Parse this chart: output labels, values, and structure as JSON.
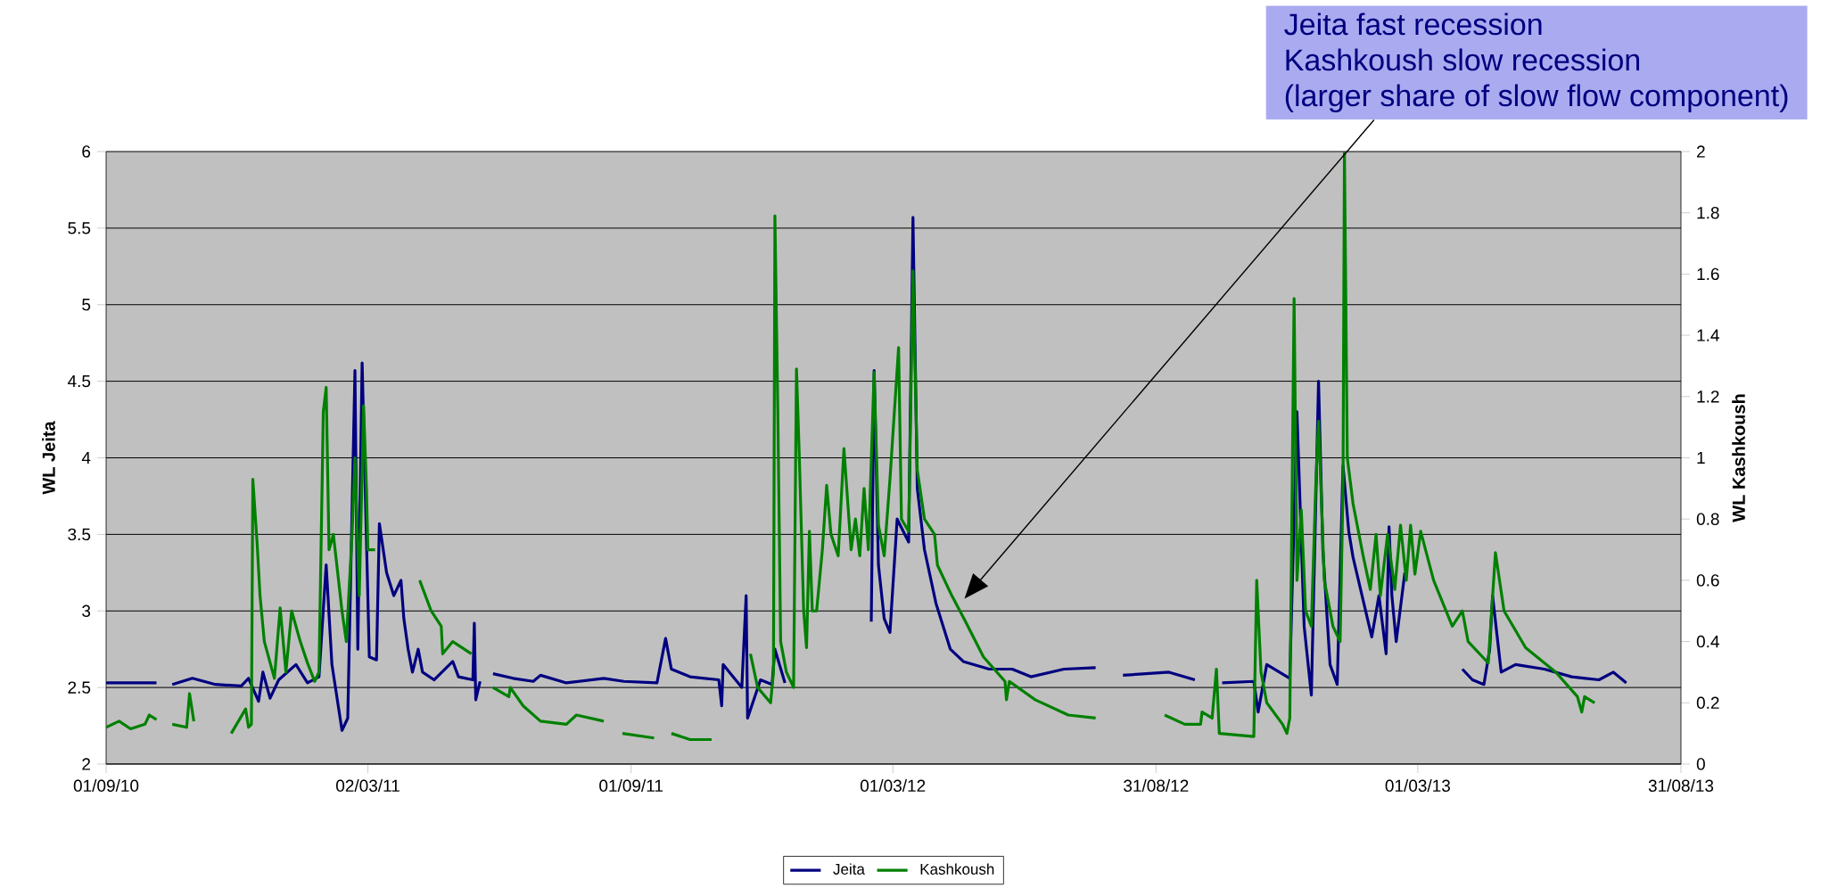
{
  "chart_data": {
    "type": "line",
    "ylabel": "WL Jeita",
    "y2label": "WL Kashkoush",
    "xlim": [
      "2010-09-01",
      "2013-08-31"
    ],
    "xticks": [
      {
        "value": "2010-09-01",
        "label": "01/09/10"
      },
      {
        "value": "2011-03-02",
        "label": "02/03/11"
      },
      {
        "value": "2011-09-01",
        "label": "01/09/11"
      },
      {
        "value": "2012-03-01",
        "label": "01/03/12"
      },
      {
        "value": "2012-08-31",
        "label": "31/08/12"
      },
      {
        "value": "2013-03-01",
        "label": "01/03/13"
      },
      {
        "value": "2013-08-31",
        "label": "31/08/13"
      }
    ],
    "ylim": [
      2,
      6
    ],
    "yticks": [
      2,
      2.5,
      3,
      3.5,
      4,
      4.5,
      5,
      5.5,
      6
    ],
    "y2lim": [
      0,
      2
    ],
    "y2ticks": [
      0,
      0.2,
      0.4,
      0.6,
      0.8,
      1,
      1.2,
      1.4,
      1.6,
      1.8,
      2
    ],
    "grid": "y",
    "legend": "bottom",
    "annotations": [
      "Jeita fast recession",
      "Kashkoush slow recession",
      "(larger share of slow flow component)"
    ],
    "series": [
      {
        "name": "Jeita",
        "color": "#000080",
        "axis": "y",
        "x": [
          "2010-09-01",
          "2010-10-06",
          "2010-10-10",
          "2010-10-17",
          "2010-10-31",
          "2010-11-16",
          "2010-12-04",
          "2010-12-09",
          "2010-12-16",
          "2010-12-19",
          "2010-12-24",
          "2010-12-30",
          "2011-01-11",
          "2011-01-19",
          "2011-01-27",
          "2011-02-01",
          "2011-02-05",
          "2011-02-12",
          "2011-02-16",
          "2011-02-21",
          "2011-02-23",
          "2011-02-26",
          "2011-03-03",
          "2011-03-08",
          "2011-03-10",
          "2011-03-15",
          "2011-03-20",
          "2011-03-25",
          "2011-03-27",
          "2011-03-30",
          "2011-04-02",
          "2011-04-06",
          "2011-04-09",
          "2011-04-17",
          "2011-04-30",
          "2011-05-04",
          "2011-05-14",
          "2011-05-15",
          "2011-05-16",
          "2011-05-19",
          "2011-05-23",
          "2011-05-28",
          "2011-06-11",
          "2011-06-25",
          "2011-06-30",
          "2011-07-18",
          "2011-08-13",
          "2011-08-27",
          "2011-09-19",
          "2011-09-25",
          "2011-09-29",
          "2011-10-12",
          "2011-11-01",
          "2011-11-03",
          "2011-11-04",
          "2011-11-17",
          "2011-11-20",
          "2011-11-21",
          "2011-11-30",
          "2011-12-08",
          "2011-12-10",
          "2011-12-17",
          "2012-01-01",
          "2012-02-15",
          "2012-02-17",
          "2012-02-20",
          "2012-02-24",
          "2012-02-28",
          "2012-03-04",
          "2012-03-12",
          "2012-03-15",
          "2012-03-18",
          "2012-03-23",
          "2012-03-31",
          "2012-04-10",
          "2012-04-19",
          "2012-05-07",
          "2012-05-23",
          "2012-06-05",
          "2012-06-28",
          "2012-07-20",
          "2012-07-30",
          "2012-08-08",
          "2012-09-09",
          "2012-09-27",
          "2012-10-05",
          "2012-10-16",
          "2012-11-07",
          "2012-11-10",
          "2012-11-16",
          "2012-12-02",
          "2012-12-07",
          "2012-12-12",
          "2012-12-17",
          "2012-12-22",
          "2012-12-25",
          "2012-12-30",
          "2013-01-04",
          "2013-01-08",
          "2013-01-12",
          "2013-01-15",
          "2013-01-28",
          "2013-02-02",
          "2013-02-07",
          "2013-02-09",
          "2013-02-11",
          "2013-02-14",
          "2013-02-20",
          "2013-02-25",
          "2013-04-01",
          "2013-04-08",
          "2013-04-16",
          "2013-04-20",
          "2013-04-22",
          "2013-04-25",
          "2013-04-28",
          "2013-05-08",
          "2013-05-28",
          "2013-06-16",
          "2013-07-05",
          "2013-07-15",
          "2013-07-24"
        ],
        "values": [
          2.53,
          2.53,
          null,
          2.52,
          2.56,
          2.52,
          2.51,
          2.56,
          2.41,
          2.6,
          2.43,
          2.55,
          2.65,
          2.53,
          2.57,
          3.3,
          2.65,
          2.22,
          2.3,
          4.57,
          2.75,
          4.62,
          2.7,
          2.68,
          3.57,
          3.25,
          3.1,
          3.2,
          2.95,
          2.75,
          2.6,
          2.75,
          2.6,
          2.55,
          2.67,
          2.57,
          2.55,
          2.92,
          2.42,
          2.54,
          null,
          2.59,
          2.56,
          2.54,
          2.58,
          2.53,
          2.56,
          2.54,
          2.53,
          2.82,
          2.62,
          2.57,
          2.55,
          2.38,
          2.65,
          2.5,
          3.1,
          2.3,
          2.55,
          2.52,
          2.75,
          2.53,
          null,
          2.93,
          4.57,
          3.3,
          2.95,
          2.86,
          3.6,
          3.45,
          5.57,
          3.8,
          3.4,
          3.05,
          2.75,
          2.67,
          2.62,
          2.62,
          2.57,
          2.62,
          2.63,
          null,
          2.58,
          2.6,
          2.55,
          null,
          2.53,
          2.54,
          2.34,
          2.65,
          2.56,
          4.3,
          2.9,
          2.45,
          4.5,
          3.4,
          2.65,
          2.52,
          3.95,
          3.52,
          3.35,
          2.83,
          3.1,
          2.72,
          3.55,
          3.1,
          2.8,
          3.25,
          null,
          2.62,
          2.55,
          2.52,
          2.75,
          3.1,
          2.85,
          2.6,
          2.65,
          2.62,
          2.57,
          2.55,
          2.6,
          2.53
        ]
      },
      {
        "name": "Kashkoush",
        "color": "#008000",
        "axis": "y2",
        "x": [
          "2010-09-01",
          "2010-09-10",
          "2010-09-18",
          "2010-09-28",
          "2010-10-01",
          "2010-10-06",
          "2010-10-10",
          "2010-10-17",
          "2010-10-27",
          "2010-10-29",
          "2010-11-01",
          "2010-11-10",
          "2010-11-27",
          "2010-12-07",
          "2010-12-09",
          "2010-12-11",
          "2010-12-12",
          "2010-12-15",
          "2010-12-17",
          "2010-12-20",
          "2010-12-27",
          "2010-12-31",
          "2011-01-04",
          "2011-01-08",
          "2011-01-14",
          "2011-01-19",
          "2011-01-24",
          "2011-01-27",
          "2011-01-30",
          "2011-02-01",
          "2011-02-03",
          "2011-02-06",
          "2011-02-12",
          "2011-02-15",
          "2011-02-19",
          "2011-02-21",
          "2011-02-24",
          "2011-02-27",
          "2011-03-01",
          "2011-03-02",
          "2011-03-07",
          "2011-03-20",
          "2011-04-07",
          "2011-04-15",
          "2011-04-22",
          "2011-04-23",
          "2011-04-30",
          "2011-05-13",
          "2011-05-20",
          "2011-05-28",
          "2011-06-08",
          "2011-06-09",
          "2011-06-18",
          "2011-06-30",
          "2011-07-18",
          "2011-07-25",
          "2011-08-13",
          "2011-08-20",
          "2011-08-26",
          "2011-09-17",
          "2011-09-23",
          "2011-09-29",
          "2011-10-12",
          "2011-10-27",
          "2011-11-10",
          "2011-11-23",
          "2011-11-28",
          "2011-12-07",
          "2011-12-09",
          "2011-12-10",
          "2011-12-12",
          "2011-12-14",
          "2011-12-18",
          "2011-12-23",
          "2011-12-25",
          "2011-12-27",
          "2011-12-30",
          "2012-01-01",
          "2012-01-03",
          "2012-01-05",
          "2012-01-08",
          "2012-01-12",
          "2012-01-15",
          "2012-01-18",
          "2012-01-23",
          "2012-01-27",
          "2012-02-01",
          "2012-02-04",
          "2012-02-07",
          "2012-02-10",
          "2012-02-13",
          "2012-02-17",
          "2012-02-20",
          "2012-02-24",
          "2012-02-28",
          "2012-03-05",
          "2012-03-07",
          "2012-03-12",
          "2012-03-15",
          "2012-03-18",
          "2012-03-23",
          "2012-03-30",
          "2012-04-01",
          "2012-04-11",
          "2012-04-20",
          "2012-05-03",
          "2012-05-18",
          "2012-05-19",
          "2012-05-21",
          "2012-06-08",
          "2012-07-01",
          "2012-07-20",
          "2012-08-01",
          "2012-09-06",
          "2012-09-20",
          "2012-10-01",
          "2012-10-02",
          "2012-10-09",
          "2012-10-12",
          "2012-10-14",
          "2012-11-07",
          "2012-11-09",
          "2012-11-12",
          "2012-11-16",
          "2012-11-27",
          "2012-11-30",
          "2012-12-02",
          "2012-12-05",
          "2012-12-07",
          "2012-12-10",
          "2012-12-13",
          "2012-12-17",
          "2012-12-20",
          "2012-12-22",
          "2012-12-26",
          "2013-01-01",
          "2013-01-06",
          "2013-01-08",
          "2013-01-09",
          "2013-01-11",
          "2013-01-15",
          "2013-01-22",
          "2013-01-27",
          "2013-01-31",
          "2013-02-03",
          "2013-02-08",
          "2013-02-13",
          "2013-02-17",
          "2013-02-21",
          "2013-02-24",
          "2013-02-27",
          "2013-03-03",
          "2013-03-12",
          "2013-03-25",
          "2013-04-01",
          "2013-04-05",
          "2013-04-15",
          "2013-04-19",
          "2013-04-24",
          "2013-04-30",
          "2013-05-15",
          "2013-06-05",
          "2013-06-20",
          "2013-06-23",
          "2013-06-25",
          "2013-07-02"
        ],
        "values": [
          0.12,
          0.14,
          0.115,
          0.13,
          0.16,
          0.145,
          null,
          0.13,
          0.12,
          0.23,
          0.14,
          null,
          0.1,
          0.18,
          0.12,
          0.13,
          0.93,
          0.72,
          0.55,
          0.4,
          0.28,
          0.51,
          0.3,
          0.5,
          0.4,
          0.33,
          0.27,
          0.3,
          1.15,
          1.23,
          0.7,
          0.75,
          0.5,
          0.4,
          0.75,
          1.0,
          0.55,
          1.17,
          0.9,
          0.7,
          0.7,
          null,
          0.6,
          0.5,
          0.45,
          0.36,
          0.4,
          0.36,
          null,
          0.25,
          0.22,
          0.25,
          0.19,
          0.14,
          0.13,
          0.16,
          0.14,
          null,
          0.1,
          0.085,
          null,
          0.1,
          0.08,
          0.08,
          null,
          0.36,
          0.25,
          0.2,
          0.3,
          1.79,
          1.16,
          0.4,
          0.3,
          0.25,
          1.29,
          1.0,
          0.5,
          0.38,
          0.76,
          0.5,
          0.5,
          0.7,
          0.91,
          0.75,
          0.68,
          1.03,
          0.7,
          0.8,
          0.68,
          0.9,
          0.7,
          1.28,
          0.78,
          0.68,
          0.93,
          1.36,
          0.8,
          0.76,
          1.61,
          0.96,
          0.8,
          0.75,
          0.65,
          0.55,
          0.47,
          0.35,
          0.27,
          0.21,
          0.27,
          0.21,
          0.16,
          0.15,
          null,
          0.16,
          0.13,
          0.13,
          0.17,
          0.15,
          0.31,
          0.1,
          0.09,
          0.6,
          0.3,
          0.2,
          0.13,
          0.1,
          0.15,
          1.52,
          0.6,
          0.83,
          0.5,
          0.45,
          0.9,
          1.12,
          0.6,
          0.45,
          0.4,
          0.9,
          2.0,
          1.0,
          0.85,
          0.68,
          0.57,
          0.75,
          0.55,
          0.75,
          0.57,
          0.78,
          0.6,
          0.78,
          0.62,
          0.76,
          0.6,
          0.45,
          0.5,
          0.4,
          0.35,
          0.33,
          0.69,
          0.5,
          0.38,
          0.3,
          0.22,
          0.17,
          0.22,
          0.2
        ]
      }
    ]
  }
}
